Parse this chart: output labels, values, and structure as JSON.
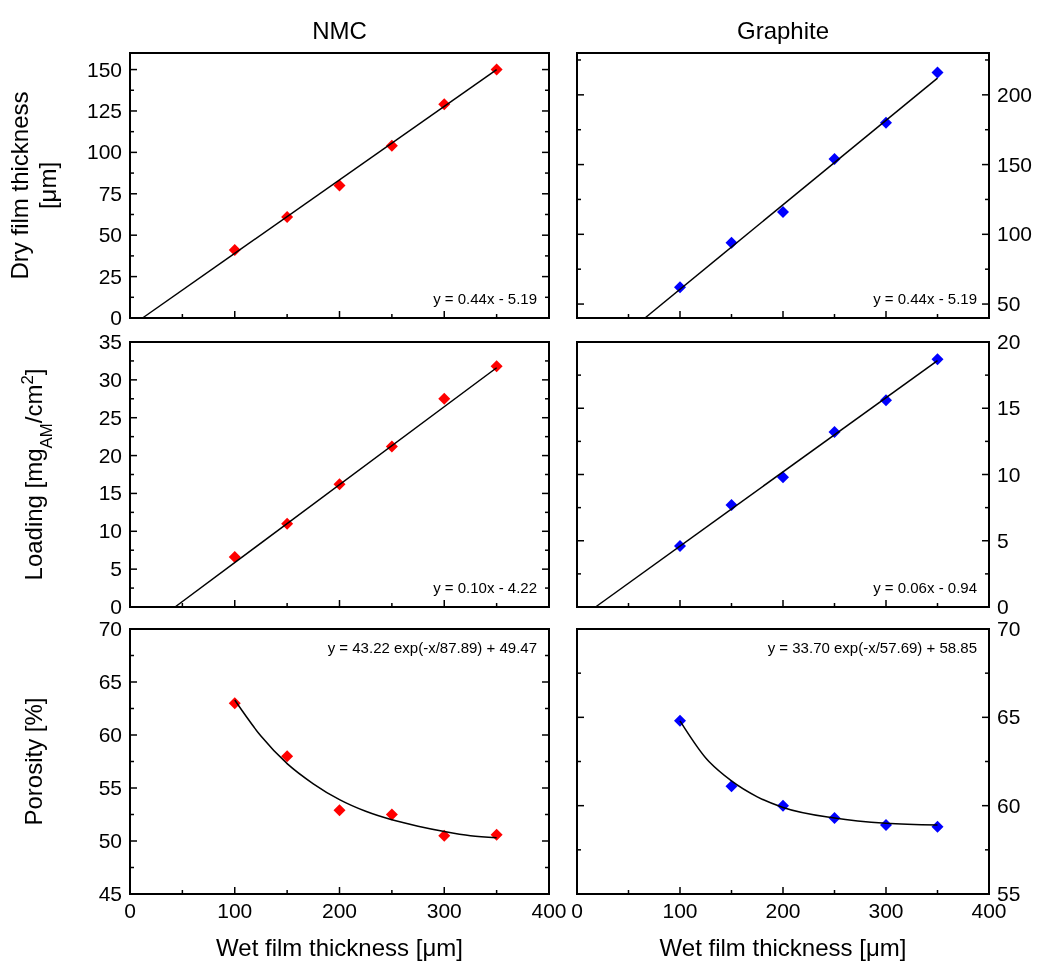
{
  "chart_data": [
    {
      "type": "scatter",
      "title": "NMC",
      "ylabel": "Dry film thickness [μm]",
      "xlim": [
        0,
        400
      ],
      "xticks": [
        0,
        {
          "value": 50,
          "label": null
        },
        100,
        {
          "value": 150,
          "label": null
        },
        200,
        {
          "value": 250,
          "label": null
        },
        300,
        {
          "value": 350,
          "label": null
        },
        400
      ],
      "ylim": [
        0,
        160
      ],
      "yticks": [
        0,
        {
          "value": 12.5,
          "label": null
        },
        25,
        {
          "value": 37.5,
          "label": null
        },
        50,
        {
          "value": 62.5,
          "label": null
        },
        75,
        {
          "value": 87.5,
          "label": null
        },
        100,
        {
          "value": 112.5,
          "label": null
        },
        125,
        {
          "value": 137.5,
          "label": null
        },
        150
      ],
      "tick_labels": "y",
      "annotations": [
        "y = 0.44x - 5.19"
      ],
      "x": [
        100,
        150,
        200,
        250,
        300,
        350
      ],
      "series": [
        {
          "color": "#ff0000",
          "marker": "diamond",
          "values": [
            41,
            61,
            80,
            104,
            129,
            150
          ]
        },
        {
          "type": "line",
          "color": "#000000",
          "marker": "none",
          "x": [
            12,
            350
          ],
          "values": [
            0,
            150
          ]
        }
      ]
    },
    {
      "type": "scatter",
      "title": "Graphite",
      "xlim": [
        0,
        400
      ],
      "xticks": [
        0,
        {
          "value": 50,
          "label": null
        },
        100,
        {
          "value": 150,
          "label": null
        },
        200,
        {
          "value": 250,
          "label": null
        },
        300,
        {
          "value": 350,
          "label": null
        },
        400
      ],
      "y2lim": [
        40,
        230
      ],
      "y2ticks": [
        50,
        {
          "value": 75,
          "label": null
        },
        100,
        {
          "value": 125,
          "label": null
        },
        150,
        {
          "value": 175,
          "label": null
        },
        200,
        {
          "value": 225,
          "label": null
        }
      ],
      "tick_labels": "y",
      "annotations": [
        "y = 0.44x - 5.19"
      ],
      "x": [
        100,
        150,
        200,
        250,
        300,
        350
      ],
      "series": [
        {
          "color": "#0000ff",
          "axis": "y2",
          "marker": "diamond",
          "values": [
            62,
            94,
            116,
            154,
            180,
            216
          ]
        },
        {
          "type": "line",
          "color": "#000000",
          "axis": "y2",
          "marker": "none",
          "x": [
            66,
            350
          ],
          "values": [
            40,
            212
          ]
        }
      ]
    },
    {
      "type": "scatter",
      "ylabel": "Loading [mg$_{AM}$/cm$^{2}$]",
      "xlim": [
        0,
        400
      ],
      "xticks": [
        0,
        {
          "value": 50,
          "label": null
        },
        100,
        {
          "value": 150,
          "label": null
        },
        200,
        {
          "value": 250,
          "label": null
        },
        300,
        {
          "value": 350,
          "label": null
        },
        400
      ],
      "ylim": [
        0,
        35
      ],
      "yticks": [
        0,
        {
          "value": 2.5,
          "label": null
        },
        5,
        {
          "value": 7.5,
          "label": null
        },
        10,
        {
          "value": 12.5,
          "label": null
        },
        15,
        {
          "value": 17.5,
          "label": null
        },
        20,
        {
          "value": 22.5,
          "label": null
        },
        25,
        {
          "value": 27.5,
          "label": null
        },
        30,
        {
          "value": 32.5,
          "label": null
        },
        35
      ],
      "tick_labels": "y",
      "annotations": [
        "y = 0.10x - 4.22"
      ],
      "x": [
        100,
        150,
        200,
        250,
        300,
        350
      ],
      "series": [
        {
          "color": "#ff0000",
          "marker": "diamond",
          "values": [
            6.6,
            11.0,
            16.2,
            21.2,
            27.5,
            31.8
          ]
        },
        {
          "type": "line",
          "color": "#000000",
          "marker": "none",
          "x": [
            43,
            350
          ],
          "values": [
            0,
            31.6
          ]
        }
      ]
    },
    {
      "type": "scatter",
      "xlim": [
        0,
        400
      ],
      "xticks": [
        0,
        {
          "value": 50,
          "label": null
        },
        100,
        {
          "value": 150,
          "label": null
        },
        200,
        {
          "value": 250,
          "label": null
        },
        300,
        {
          "value": 350,
          "label": null
        },
        400
      ],
      "y2lim": [
        0,
        20
      ],
      "y2ticks": [
        0,
        {
          "value": 2.5,
          "label": null
        },
        5,
        {
          "value": 7.5,
          "label": null
        },
        10,
        {
          "value": 12.5,
          "label": null
        },
        15,
        {
          "value": 17.5,
          "label": null
        },
        20
      ],
      "tick_labels": "y",
      "annotations": [
        "y = 0.06x - 0.94"
      ],
      "x": [
        100,
        150,
        200,
        250,
        300,
        350
      ],
      "series": [
        {
          "color": "#0000ff",
          "axis": "y2",
          "marker": "diamond",
          "values": [
            4.6,
            7.7,
            9.8,
            13.2,
            15.6,
            18.7
          ]
        },
        {
          "type": "line",
          "color": "#000000",
          "axis": "y2",
          "marker": "none",
          "x": [
            18,
            350
          ],
          "values": [
            0,
            18.6
          ]
        }
      ]
    },
    {
      "type": "scatter",
      "ylabel": "Porosity [%]",
      "xlabel": "Wet film thickness [μm]",
      "xlim": [
        0,
        400
      ],
      "xticks": [
        0,
        {
          "value": 50,
          "label": null
        },
        100,
        {
          "value": 150,
          "label": null
        },
        200,
        {
          "value": 250,
          "label": null
        },
        300,
        {
          "value": 350,
          "label": null
        },
        400
      ],
      "ylim": [
        45,
        70
      ],
      "yticks": [
        45,
        {
          "value": 47.5,
          "label": null
        },
        50,
        {
          "value": 52.5,
          "label": null
        },
        55,
        {
          "value": 57.5,
          "label": null
        },
        60,
        {
          "value": 62.5,
          "label": null
        },
        65,
        {
          "value": 67.5,
          "label": null
        },
        70
      ],
      "annotations": [
        "y = 43.22 exp(-x/87.89) + 49.47"
      ],
      "x": [
        100,
        150,
        200,
        250,
        300,
        350
      ],
      "series": [
        {
          "color": "#ff0000",
          "marker": "diamond",
          "values": [
            63.0,
            58.0,
            52.9,
            52.5,
            50.5,
            50.6
          ]
        },
        {
          "type": "line",
          "color": "#000000",
          "marker": "none",
          "x": [
            100,
            125,
            150,
            175,
            200,
            225,
            250,
            275,
            300,
            325,
            350
          ],
          "values": [
            63.3,
            59.9,
            57.3,
            55.4,
            53.9,
            52.8,
            52.0,
            51.4,
            50.9,
            50.5,
            50.3
          ]
        }
      ]
    },
    {
      "type": "scatter",
      "xlabel": "Wet film thickness [μm]",
      "xlim": [
        0,
        400
      ],
      "xticks": [
        0,
        {
          "value": 50,
          "label": null
        },
        100,
        {
          "value": 150,
          "label": null
        },
        200,
        {
          "value": 250,
          "label": null
        },
        300,
        {
          "value": 350,
          "label": null
        },
        400
      ],
      "y2lim": [
        55,
        70
      ],
      "y2ticks": [
        55,
        {
          "value": 57.5,
          "label": null
        },
        60,
        {
          "value": 62.5,
          "label": null
        },
        65,
        {
          "value": 67.5,
          "label": null
        },
        70
      ],
      "annotations": [
        "y = 33.70 exp(-x/57.69) + 58.85"
      ],
      "x": [
        100,
        150,
        200,
        250,
        300,
        350
      ],
      "series": [
        {
          "color": "#0000ff",
          "axis": "y2",
          "marker": "diamond",
          "values": [
            64.8,
            61.1,
            60.0,
            59.3,
            58.9,
            58.8
          ]
        },
        {
          "type": "line",
          "color": "#000000",
          "axis": "y2",
          "marker": "none",
          "x": [
            100,
            125,
            150,
            175,
            200,
            250,
            300,
            350
          ],
          "values": [
            64.8,
            62.7,
            61.4,
            60.5,
            59.9,
            59.3,
            59.0,
            58.9
          ]
        }
      ]
    }
  ]
}
